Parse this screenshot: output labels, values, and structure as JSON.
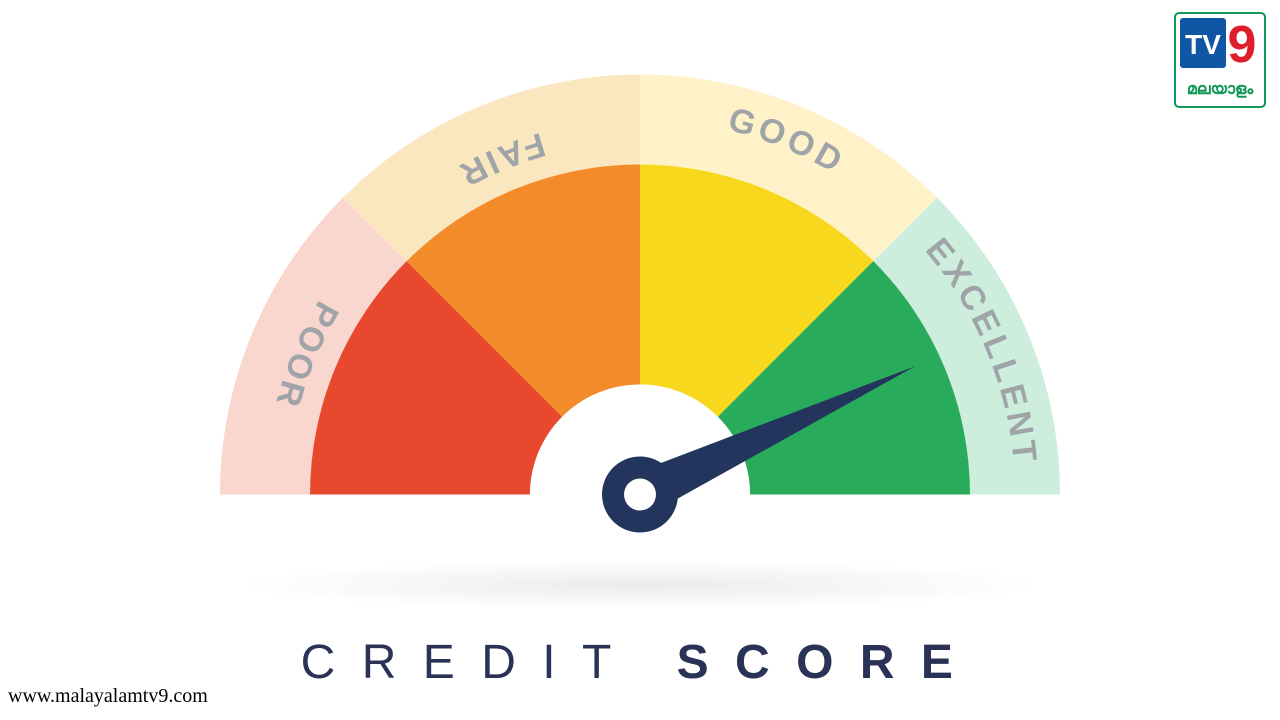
{
  "gauge": {
    "type": "gauge",
    "segments": [
      {
        "label": "POOR",
        "outer_color": "#f9d7cf",
        "inner_color": "#e8492e",
        "label_color": "#9fa4a9"
      },
      {
        "label": "FAIR",
        "outer_color": "#fbe7bf",
        "inner_color": "#f48b2a",
        "label_color": "#9fa4a9"
      },
      {
        "label": "GOOD",
        "outer_color": "#fff2c9",
        "inner_color": "#f8d81c",
        "label_color": "#9fa4a9"
      },
      {
        "label": "EXCELLENT",
        "outer_color": "#cdeedc",
        "inner_color": "#28ac5b",
        "label_color": "#9fa4a9"
      }
    ],
    "outer_radius": 420,
    "inner_ring_radius": 330,
    "hub_outer_radius": 110,
    "needle_angle_deg": 25,
    "needle_color": "#23355c",
    "hub_color": "#ffffff",
    "label_fontsize": 34,
    "label_fontweight": 700,
    "background": "#ffffff"
  },
  "title": {
    "word1": "CREDIT",
    "word2": "SCORE",
    "color": "#2a3356",
    "fontsize": 48,
    "letterspacing_em": 0.55
  },
  "watermark": {
    "text": "www.malayalamtv9.com"
  },
  "logo": {
    "bg": "#ffffff",
    "border": "#0f9857",
    "tv_bg": "#1156a4",
    "nine_color": "#e01e2b",
    "tv_text": "TV",
    "sub_text": "മലയാളം",
    "sub_color": "#0f9857"
  }
}
